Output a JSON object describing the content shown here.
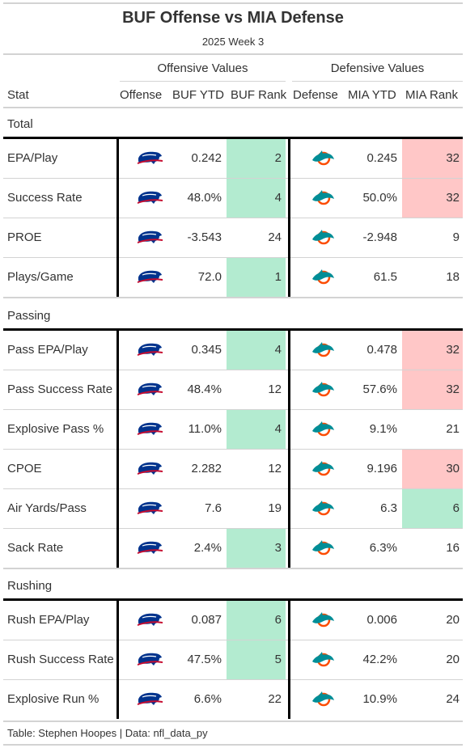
{
  "chart_data": {
    "type": "table",
    "title": "BUF Offense vs MIA Defense",
    "subtitle": "2025 Week 3",
    "spanners": {
      "offense": "Offensive Values",
      "defense": "Defensive Values"
    },
    "columns": [
      "Stat",
      "Offense",
      "BUF YTD",
      "BUF Rank",
      "Defense",
      "MIA YTD",
      "MIA Rank"
    ],
    "groups": [
      {
        "name": "Total",
        "rows": [
          {
            "stat": "EPA/Play",
            "buf_ytd": "0.242",
            "buf_rank": 2,
            "mia_ytd": "0.245",
            "mia_rank": 32
          },
          {
            "stat": "Success Rate",
            "buf_ytd": "48.0%",
            "buf_rank": 4,
            "mia_ytd": "50.0%",
            "mia_rank": 32
          },
          {
            "stat": "PROE",
            "buf_ytd": "-3.543",
            "buf_rank": 24,
            "mia_ytd": "-2.948",
            "mia_rank": 9
          },
          {
            "stat": "Plays/Game",
            "buf_ytd": "72.0",
            "buf_rank": 1,
            "mia_ytd": "61.5",
            "mia_rank": 18
          }
        ]
      },
      {
        "name": "Passing",
        "rows": [
          {
            "stat": "Pass EPA/Play",
            "buf_ytd": "0.345",
            "buf_rank": 4,
            "mia_ytd": "0.478",
            "mia_rank": 32
          },
          {
            "stat": "Pass Success Rate",
            "buf_ytd": "48.4%",
            "buf_rank": 12,
            "mia_ytd": "57.6%",
            "mia_rank": 32
          },
          {
            "stat": "Explosive Pass %",
            "buf_ytd": "11.0%",
            "buf_rank": 4,
            "mia_ytd": "9.1%",
            "mia_rank": 21
          },
          {
            "stat": "CPOE",
            "buf_ytd": "2.282",
            "buf_rank": 12,
            "mia_ytd": "9.196",
            "mia_rank": 30
          },
          {
            "stat": "Air Yards/Pass",
            "buf_ytd": "7.6",
            "buf_rank": 19,
            "mia_ytd": "6.3",
            "mia_rank": 6
          },
          {
            "stat": "Sack Rate",
            "buf_ytd": "2.4%",
            "buf_rank": 3,
            "mia_ytd": "6.3%",
            "mia_rank": 16
          }
        ]
      },
      {
        "name": "Rushing",
        "rows": [
          {
            "stat": "Rush EPA/Play",
            "buf_ytd": "0.087",
            "buf_rank": 6,
            "mia_ytd": "0.006",
            "mia_rank": 20
          },
          {
            "stat": "Rush Success Rate",
            "buf_ytd": "47.5%",
            "buf_rank": 5,
            "mia_ytd": "42.2%",
            "mia_rank": 20
          },
          {
            "stat": "Explosive Run %",
            "buf_ytd": "6.6%",
            "buf_rank": 22,
            "mia_ytd": "10.9%",
            "mia_rank": 24
          }
        ]
      }
    ],
    "highlight": {
      "good_max_rank": 6,
      "bad_min_rank": 30,
      "good_color": "#b3ebd0",
      "bad_color": "#ffc7c7"
    },
    "team_colors": {
      "buf_blue": "#00338d",
      "buf_red": "#c60c30",
      "mia_aqua": "#008e97",
      "mia_orange": "#fc4c02"
    },
    "icons": {
      "offense": "buf-bison-logo-icon",
      "defense": "mia-dolphin-logo-icon"
    },
    "footer": "Table: Stephen Hoopes | Data: nfl_data_py"
  }
}
